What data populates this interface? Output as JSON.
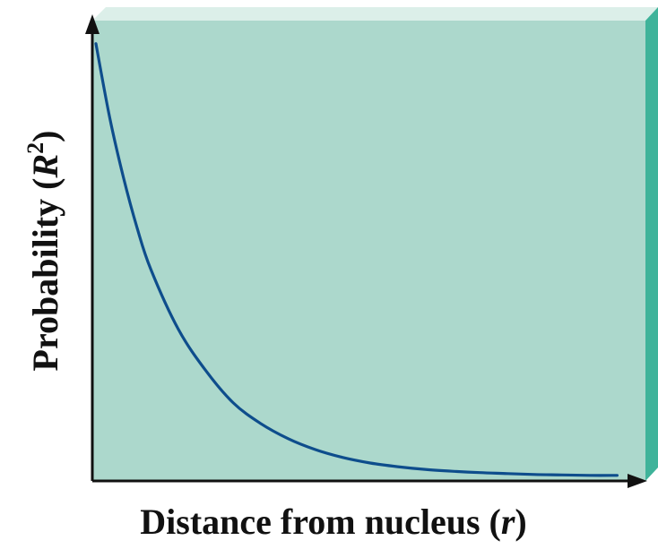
{
  "chart_data": {
    "type": "line",
    "title": "",
    "xlabel": "Distance from nucleus (r)",
    "xlabel_parts": {
      "main": "Distance from nucleus (",
      "var": "r",
      "close": ")"
    },
    "ylabel": "Probability (R²)",
    "ylabel_parts": {
      "main": "Probability (",
      "var": "R",
      "sup": "2",
      "close": ")"
    },
    "xlim": [
      0,
      10
    ],
    "ylim": [
      0,
      1
    ],
    "grid": false,
    "legend": "none",
    "x_ticks": [],
    "y_ticks": [],
    "series": [
      {
        "x": [
          0,
          0.25,
          0.5,
          0.75,
          1,
          1.5,
          2,
          2.5,
          3,
          3.5,
          4,
          4.5,
          5,
          5.5,
          6,
          6.5,
          7,
          7.5,
          8,
          8.5,
          9,
          9.5
        ],
        "y": [
          0.95,
          0.79,
          0.66,
          0.55,
          0.46,
          0.33,
          0.24,
          0.17,
          0.125,
          0.092,
          0.068,
          0.051,
          0.039,
          0.031,
          0.025,
          0.021,
          0.018,
          0.016,
          0.014,
          0.013,
          0.012,
          0.012
        ]
      }
    ]
  },
  "colors": {
    "panel_fill": "#acd8cc",
    "panel_top": "#dcefe9",
    "panel_side": "#3fb39a",
    "curve": "#0e4d8c",
    "axis": "#111111"
  }
}
